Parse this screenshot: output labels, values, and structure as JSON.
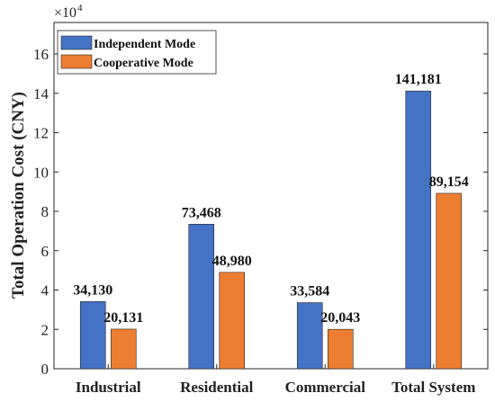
{
  "chart_data": {
    "type": "bar",
    "ylabel": "Total Operation Cost (CNY)",
    "xlabel": "",
    "scale_multiplier": "×10",
    "scale_exponent": "4",
    "ylim": [
      0,
      17.6
    ],
    "yticks": [
      0,
      2,
      4,
      6,
      8,
      10,
      12,
      14,
      16
    ],
    "grid": false,
    "legend_position": "top-left",
    "categories": [
      "Industrial",
      "Residential",
      "Commercial",
      "Total System"
    ],
    "series": [
      {
        "name": "Independent Mode",
        "color": "#4472C4",
        "values": [
          3.413,
          7.3468,
          3.3584,
          14.1181
        ],
        "labels": [
          "34,130",
          "73,468",
          "33,584",
          "141,181"
        ]
      },
      {
        "name": "Cooperative Mode",
        "color": "#ED7D31",
        "values": [
          2.0131,
          4.898,
          2.0043,
          8.9154
        ],
        "labels": [
          "20,131",
          "48,980",
          "20,043",
          "89,154"
        ]
      }
    ]
  }
}
